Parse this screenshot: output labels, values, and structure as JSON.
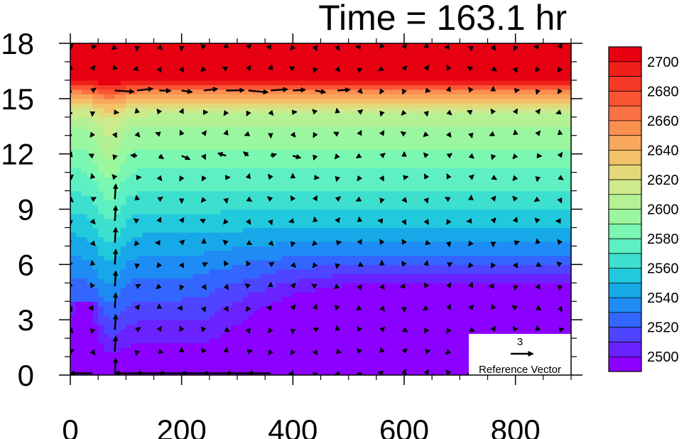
{
  "chart_data": {
    "type": "heatmap",
    "title": "Time = 163.1 hr",
    "xlim": [
      0,
      900
    ],
    "ylim": [
      0,
      18
    ],
    "x_ticks": [
      0,
      200,
      400,
      600,
      800
    ],
    "y_ticks": [
      0,
      3,
      6,
      9,
      12,
      15,
      18
    ],
    "x_tick_labels": [
      "0",
      "200",
      "400",
      "600",
      "800"
    ],
    "y_tick_labels": [
      "0",
      "3",
      "6",
      "9",
      "12",
      "15",
      "18"
    ],
    "colorbar": {
      "levels": [
        2490,
        2500,
        2510,
        2520,
        2530,
        2540,
        2550,
        2560,
        2570,
        2580,
        2590,
        2600,
        2610,
        2620,
        2630,
        2640,
        2650,
        2660,
        2670,
        2680,
        2690,
        2700,
        2710
      ],
      "labels": [
        "2500",
        "2520",
        "2540",
        "2560",
        "2580",
        "2600",
        "2620",
        "2640",
        "2660",
        "2680",
        "2700"
      ],
      "label_values": [
        2500,
        2520,
        2540,
        2560,
        2580,
        2600,
        2620,
        2640,
        2660,
        2680,
        2700
      ],
      "colors": [
        "#8c00ff",
        "#6a22ff",
        "#4f44ff",
        "#3366ff",
        "#1f8bf5",
        "#17a8e8",
        "#22c9dc",
        "#3ddfcf",
        "#5ef0c2",
        "#7af7b1",
        "#9af7a0",
        "#b4f094",
        "#cdea8c",
        "#e4d97a",
        "#f2c168",
        "#f8a85c",
        "#fb8f50",
        "#fb7244",
        "#fa5636",
        "#f53b28",
        "#ef1f1a",
        "#e60012"
      ]
    },
    "reference_vector": {
      "magnitude": "3",
      "label": "Reference Vector"
    },
    "grid": false,
    "legend_placement": "right"
  }
}
